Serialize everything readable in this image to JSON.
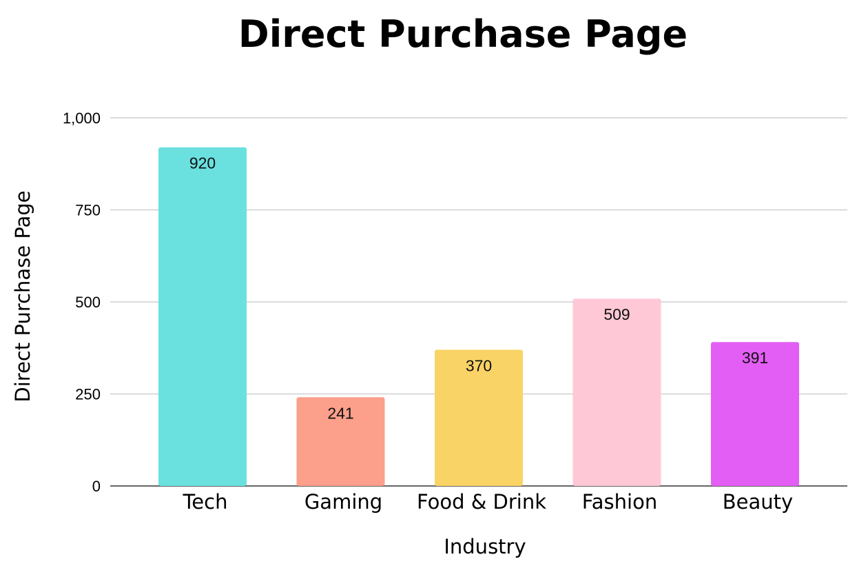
{
  "chart_data": {
    "type": "bar",
    "title": "Direct Purchase Page",
    "xlabel": "Industry",
    "ylabel": "Direct Purchase Page",
    "categories": [
      "Tech",
      "Gaming",
      "Food & Drink",
      "Fashion",
      "Beauty"
    ],
    "values": [
      920,
      241,
      370,
      509,
      391
    ],
    "data_labels": [
      "920",
      "241",
      "370",
      "509",
      "391"
    ],
    "colors": [
      "#6ae0df",
      "#fc9f8b",
      "#fad366",
      "#fec8d6",
      "#e35ef4"
    ],
    "ylim": [
      0,
      1000
    ],
    "yticks": [
      0,
      250,
      500,
      750,
      1000
    ],
    "ytick_labels": [
      "0",
      "250",
      "500",
      "750",
      "1,000"
    ],
    "grid": true,
    "legend": "none"
  }
}
